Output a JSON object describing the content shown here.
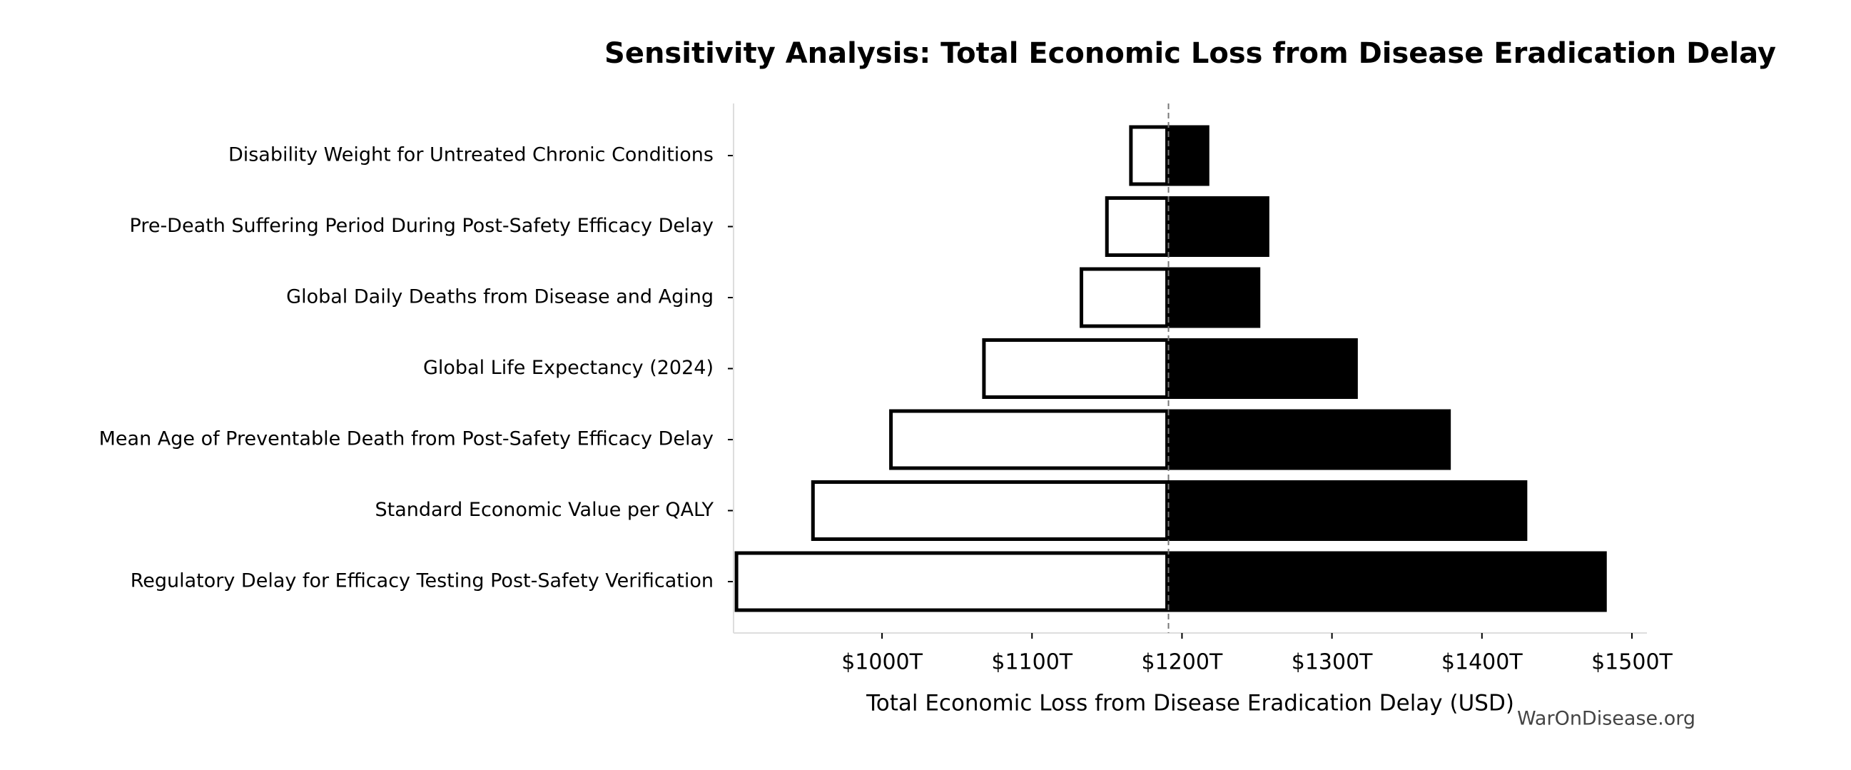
{
  "chart_data": {
    "type": "tornado",
    "title": "Sensitivity Analysis: Total Economic Loss from Disease Eradication Delay",
    "xlabel": "Total Economic Loss from Disease Eradication Delay (USD)",
    "watermark": "WarOnDisease.org",
    "categories": [
      "Disability Weight for Untreated Chronic Conditions",
      "Pre-Death Suffering Period During Post-Safety Efficacy Delay",
      "Global Daily Deaths from Disease and Aging",
      "Global Life Expectancy (2024)",
      "Mean Age of Preventable Death from Post-Safety Efficacy Delay",
      "Standard Economic Value per QALY",
      "Regulatory Delay for Efficacy Testing Post-Safety Verification"
    ],
    "baseline": 1191,
    "series": [
      {
        "color": "#ffffff",
        "values": [
          1165,
          1149,
          1132,
          1067,
          1005,
          953,
          902
        ]
      },
      {
        "color": "#000000",
        "values": [
          1218,
          1258,
          1252,
          1317,
          1379,
          1430,
          1483
        ]
      }
    ],
    "xlim": [
      901,
      1510
    ],
    "xticks": [
      {
        "value": 1000,
        "label": "$1000T"
      },
      {
        "value": 1100,
        "label": "$1100T"
      },
      {
        "value": 1200,
        "label": "$1200T"
      },
      {
        "value": 1300,
        "label": "$1300T"
      },
      {
        "value": 1400,
        "label": "$1400T"
      },
      {
        "value": 1500,
        "label": "$1500T"
      }
    ]
  }
}
